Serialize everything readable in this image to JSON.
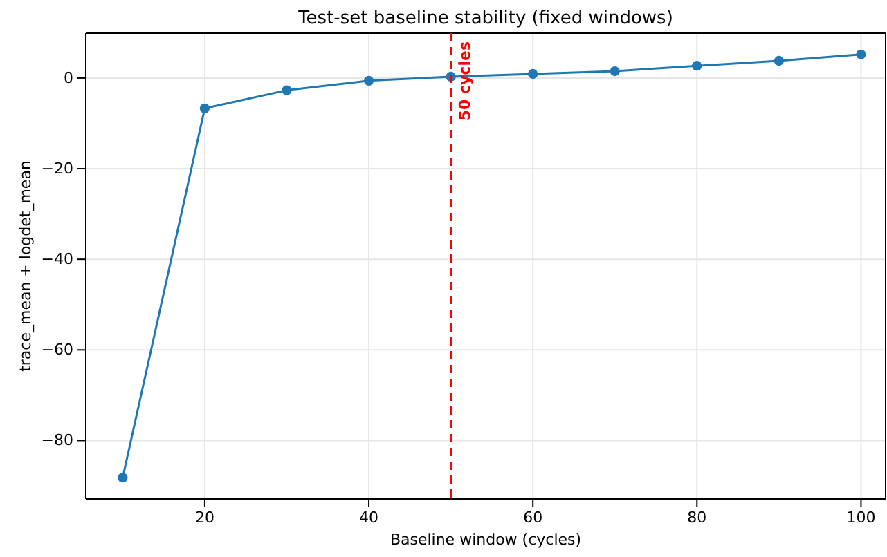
{
  "chart_data": {
    "type": "line",
    "title": "Test-set baseline stability (fixed windows)",
    "xlabel": "Baseline window (cycles)",
    "ylabel": "trace_mean + logdet_mean",
    "x": [
      10,
      20,
      30,
      40,
      50,
      60,
      70,
      80,
      90,
      100
    ],
    "series": [
      {
        "color": "#1f77b4",
        "values": [
          -88.2,
          -6.7,
          -2.7,
          -0.6,
          0.3,
          0.9,
          1.5,
          2.7,
          3.8,
          5.2
        ]
      }
    ],
    "xlim": [
      5.5,
      103
    ],
    "xticks": [
      20,
      40,
      60,
      80,
      100
    ],
    "ylim": [
      -92.9,
      9.9
    ],
    "yticks": [
      {
        "value": -80,
        "label": "−80"
      },
      {
        "value": -60,
        "label": "−60"
      },
      {
        "value": -40,
        "label": "−40"
      },
      {
        "value": -20,
        "label": "−20"
      },
      0
    ],
    "ref_lines": [
      {
        "axis": "x",
        "value": 50,
        "label": "50 cycles",
        "color": "#ff0000",
        "line_style": "dashed"
      }
    ],
    "grid": true,
    "marker": "circle",
    "line_style": "solid"
  }
}
